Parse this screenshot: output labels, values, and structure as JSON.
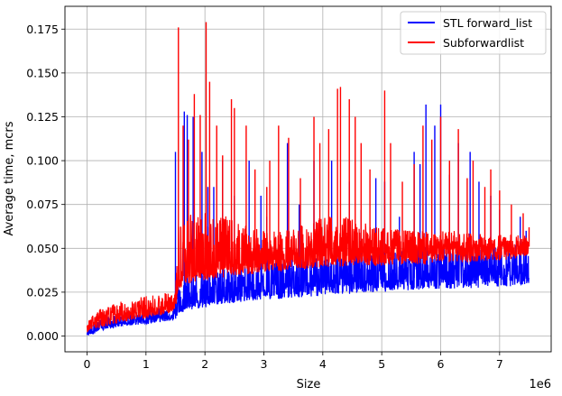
{
  "chart_data": {
    "type": "line",
    "title": "",
    "xlabel": "Size",
    "ylabel": "Average time, mcrs",
    "x_offset_label": "1e6",
    "xlim": [
      -0.375,
      7.875
    ],
    "ylim": [
      -0.009,
      0.188
    ],
    "x_ticks": [
      0,
      1,
      2,
      3,
      4,
      5,
      6,
      7
    ],
    "x_tick_labels": [
      "0",
      "1",
      "2",
      "3",
      "4",
      "5",
      "6",
      "7"
    ],
    "y_ticks": [
      0.0,
      0.025,
      0.05,
      0.075,
      0.1,
      0.125,
      0.15,
      0.175
    ],
    "y_tick_labels": [
      "0.000",
      "0.025",
      "0.050",
      "0.075",
      "0.100",
      "0.125",
      "0.150",
      "0.175"
    ],
    "grid": true,
    "legend_position": "top-right",
    "series": [
      {
        "name": "STL forward_list",
        "color": "#0000ff",
        "x": [
          0,
          0.25,
          0.5,
          0.75,
          1.0,
          1.25,
          1.5,
          1.55,
          1.75,
          2.0,
          2.25,
          2.5,
          2.75,
          3.0,
          3.25,
          3.5,
          3.75,
          4.0,
          4.25,
          4.5,
          4.75,
          5.0,
          5.25,
          5.5,
          5.75,
          6.0,
          6.25,
          6.5,
          6.75,
          7.0,
          7.25,
          7.5
        ],
        "y": [
          0.002,
          0.005,
          0.007,
          0.008,
          0.009,
          0.011,
          0.012,
          0.017,
          0.02,
          0.021,
          0.023,
          0.024,
          0.026,
          0.027,
          0.028,
          0.028,
          0.029,
          0.03,
          0.031,
          0.031,
          0.032,
          0.032,
          0.033,
          0.033,
          0.034,
          0.034,
          0.035,
          0.035,
          0.035,
          0.035,
          0.035,
          0.036
        ],
        "band_low": [
          0.0,
          0.003,
          0.005,
          0.006,
          0.007,
          0.008,
          0.009,
          0.013,
          0.015,
          0.016,
          0.018,
          0.019,
          0.02,
          0.021,
          0.021,
          0.022,
          0.022,
          0.023,
          0.024,
          0.024,
          0.025,
          0.025,
          0.026,
          0.026,
          0.027,
          0.027,
          0.027,
          0.027,
          0.028,
          0.028,
          0.028,
          0.03
        ],
        "band_high": [
          0.005,
          0.01,
          0.012,
          0.013,
          0.015,
          0.016,
          0.017,
          0.03,
          0.036,
          0.038,
          0.04,
          0.041,
          0.043,
          0.044,
          0.045,
          0.046,
          0.046,
          0.047,
          0.048,
          0.048,
          0.049,
          0.049,
          0.05,
          0.05,
          0.051,
          0.051,
          0.052,
          0.052,
          0.052,
          0.052,
          0.052,
          0.054
        ],
        "spikes": [
          [
            1.5,
            0.105
          ],
          [
            1.65,
            0.128
          ],
          [
            1.7,
            0.126
          ],
          [
            1.8,
            0.125
          ],
          [
            1.95,
            0.105
          ],
          [
            2.05,
            0.085
          ],
          [
            2.15,
            0.085
          ],
          [
            2.3,
            0.1
          ],
          [
            2.5,
            0.08
          ],
          [
            2.75,
            0.1
          ],
          [
            2.95,
            0.08
          ],
          [
            3.05,
            0.068
          ],
          [
            3.4,
            0.11
          ],
          [
            3.6,
            0.075
          ],
          [
            3.85,
            0.1
          ],
          [
            4.15,
            0.1
          ],
          [
            4.45,
            0.088
          ],
          [
            4.65,
            0.072
          ],
          [
            4.9,
            0.09
          ],
          [
            5.05,
            0.088
          ],
          [
            5.3,
            0.068
          ],
          [
            5.55,
            0.105
          ],
          [
            5.65,
            0.098
          ],
          [
            5.75,
            0.132
          ],
          [
            5.9,
            0.12
          ],
          [
            6.0,
            0.132
          ],
          [
            6.15,
            0.092
          ],
          [
            6.3,
            0.11
          ],
          [
            6.5,
            0.105
          ],
          [
            6.65,
            0.088
          ],
          [
            6.85,
            0.08
          ],
          [
            7.0,
            0.072
          ],
          [
            7.35,
            0.068
          ],
          [
            7.45,
            0.06
          ]
        ]
      },
      {
        "name": "Subforwardlist",
        "color": "#ff0000",
        "x": [
          0,
          0.25,
          0.5,
          0.75,
          1.0,
          1.25,
          1.5,
          1.55,
          1.75,
          2.0,
          2.25,
          2.5,
          2.75,
          3.0,
          3.25,
          3.5,
          3.75,
          4.0,
          4.25,
          4.5,
          4.75,
          5.0,
          5.25,
          5.5,
          5.75,
          6.0,
          6.25,
          6.5,
          6.75,
          7.0,
          7.25,
          7.5
        ],
        "y": [
          0.005,
          0.009,
          0.011,
          0.013,
          0.014,
          0.016,
          0.018,
          0.033,
          0.036,
          0.038,
          0.04,
          0.041,
          0.042,
          0.043,
          0.044,
          0.045,
          0.045,
          0.046,
          0.046,
          0.047,
          0.047,
          0.047,
          0.048,
          0.048,
          0.048,
          0.049,
          0.049,
          0.049,
          0.049,
          0.05,
          0.05,
          0.051
        ],
        "band_low": [
          0.002,
          0.005,
          0.007,
          0.009,
          0.01,
          0.012,
          0.014,
          0.027,
          0.03,
          0.032,
          0.033,
          0.034,
          0.035,
          0.036,
          0.037,
          0.038,
          0.038,
          0.039,
          0.039,
          0.04,
          0.04,
          0.04,
          0.041,
          0.041,
          0.041,
          0.042,
          0.042,
          0.042,
          0.043,
          0.043,
          0.044,
          0.046
        ],
        "band_high": [
          0.009,
          0.016,
          0.019,
          0.021,
          0.023,
          0.024,
          0.026,
          0.065,
          0.07,
          0.072,
          0.07,
          0.066,
          0.062,
          0.06,
          0.06,
          0.062,
          0.064,
          0.068,
          0.07,
          0.067,
          0.064,
          0.062,
          0.061,
          0.06,
          0.06,
          0.06,
          0.06,
          0.059,
          0.058,
          0.058,
          0.058,
          0.057
        ],
        "spikes": [
          [
            1.55,
            0.176
          ],
          [
            1.63,
            0.12
          ],
          [
            1.72,
            0.112
          ],
          [
            1.82,
            0.138
          ],
          [
            1.92,
            0.126
          ],
          [
            2.02,
            0.179
          ],
          [
            2.08,
            0.145
          ],
          [
            2.2,
            0.12
          ],
          [
            2.3,
            0.103
          ],
          [
            2.45,
            0.135
          ],
          [
            2.5,
            0.13
          ],
          [
            2.7,
            0.12
          ],
          [
            2.85,
            0.095
          ],
          [
            3.05,
            0.085
          ],
          [
            3.1,
            0.1
          ],
          [
            3.25,
            0.12
          ],
          [
            3.42,
            0.113
          ],
          [
            3.62,
            0.09
          ],
          [
            3.85,
            0.125
          ],
          [
            3.95,
            0.11
          ],
          [
            4.1,
            0.118
          ],
          [
            4.25,
            0.141
          ],
          [
            4.3,
            0.142
          ],
          [
            4.45,
            0.135
          ],
          [
            4.55,
            0.125
          ],
          [
            4.65,
            0.11
          ],
          [
            4.8,
            0.095
          ],
          [
            5.05,
            0.14
          ],
          [
            5.15,
            0.11
          ],
          [
            5.35,
            0.088
          ],
          [
            5.55,
            0.098
          ],
          [
            5.7,
            0.12
          ],
          [
            5.85,
            0.112
          ],
          [
            6.0,
            0.125
          ],
          [
            6.15,
            0.1
          ],
          [
            6.3,
            0.118
          ],
          [
            6.45,
            0.09
          ],
          [
            6.55,
            0.1
          ],
          [
            6.75,
            0.085
          ],
          [
            6.85,
            0.095
          ],
          [
            7.0,
            0.083
          ],
          [
            7.2,
            0.075
          ],
          [
            7.4,
            0.07
          ],
          [
            7.5,
            0.062
          ]
        ]
      }
    ]
  }
}
